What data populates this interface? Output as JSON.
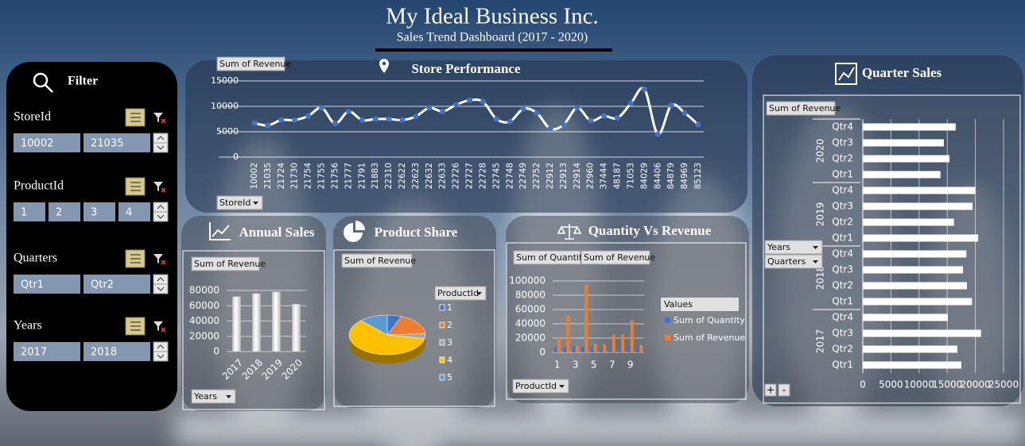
{
  "header": {
    "title": "My Ideal Business Inc.",
    "subtitle": "Sales Trend Dashboard (2017 - 2020)"
  },
  "filter": {
    "title": "Filter",
    "slicers": [
      {
        "name": "StoreId",
        "items": [
          "10002",
          "21035"
        ]
      },
      {
        "name": "ProductId",
        "items": [
          "1",
          "2",
          "3",
          "4"
        ]
      },
      {
        "name": "Quarters",
        "items": [
          "Qtr1",
          "Qtr2"
        ]
      },
      {
        "name": "Years",
        "items": [
          "2017",
          "2018"
        ]
      }
    ]
  },
  "chart_data": [
    {
      "type": "line",
      "title": "Store Performance",
      "value_field": "Sum of Revenue",
      "axis_field": "StoreId",
      "categories": [
        "10002",
        "21035",
        "21724",
        "21730",
        "21754",
        "21755",
        "21756",
        "21777",
        "21791",
        "21883",
        "22310",
        "22622",
        "22623",
        "22632",
        "22633",
        "22726",
        "22727",
        "22728",
        "22745",
        "22748",
        "22749",
        "22752",
        "22912",
        "22913",
        "22914",
        "22960",
        "37444",
        "48187",
        "71053",
        "84029",
        "84406",
        "84879",
        "84969",
        "85123"
      ],
      "values": [
        6700,
        6250,
        7300,
        7300,
        8100,
        9700,
        6600,
        9000,
        7300,
        7500,
        7500,
        7300,
        8000,
        9700,
        9000,
        10300,
        11200,
        10900,
        7500,
        7000,
        9500,
        8700,
        5600,
        6400,
        9700,
        7200,
        8100,
        7700,
        10600,
        13400,
        4500,
        10200,
        8700,
        6400
      ],
      "color": "#ffffff",
      "marker_color": "#4472c4",
      "ylim": [
        0,
        15000
      ],
      "yticks": [
        0,
        5000,
        10000,
        15000
      ],
      "grid": true
    },
    {
      "type": "column",
      "title": "Annual Sales",
      "value_field": "Sum of Revenue",
      "axis_field": "Years",
      "categories": [
        "2017",
        "2018",
        "2019",
        "2020"
      ],
      "values": [
        72000,
        76000,
        78000,
        62000
      ],
      "color": "#ffffff",
      "ylim": [
        0,
        80000
      ],
      "yticks": [
        0,
        20000,
        40000,
        60000,
        80000
      ],
      "grid": true
    },
    {
      "type": "pie",
      "title": "Product Share",
      "value_field": "Sum of Revenue",
      "legend_title": "ProductId",
      "categories": [
        "1",
        "2",
        "3",
        "4",
        "5"
      ],
      "values": [
        6,
        18,
        4,
        60,
        12
      ],
      "colors": [
        "#4472c4",
        "#ed7d31",
        "#a5a5a5",
        "#ffc000",
        "#5b9bd5"
      ]
    },
    {
      "type": "column",
      "title": "Quantity Vs Revenue",
      "axis_field": "ProductId",
      "legend_title": "Values",
      "categories": [
        "1",
        null,
        "3",
        null,
        "5",
        null,
        "7",
        null,
        "9",
        null
      ],
      "series": [
        {
          "name": "Sum of Quantity",
          "color": "#4472c4",
          "values": [
            8000,
            7000,
            9000,
            8000,
            7000,
            6000,
            8000,
            7000,
            9000,
            8000
          ]
        },
        {
          "name": "Sum of Revenue",
          "color": "#ed7d31",
          "values": [
            20000,
            52000,
            9000,
            95000,
            12000,
            11000,
            25000,
            25000,
            45000,
            10000
          ]
        }
      ],
      "ylim": [
        0,
        100000
      ],
      "yticks": [
        0,
        20000,
        40000,
        60000,
        80000,
        100000
      ],
      "grid": true
    },
    {
      "type": "bar",
      "title": "Quarter Sales",
      "value_field": "Sum of Revenue",
      "row_fields": [
        "Years",
        "Quarters"
      ],
      "groups": [
        {
          "label": "2020",
          "categories": [
            "Qtr4",
            "Qtr3",
            "Qtr2",
            "Qtr1"
          ],
          "values": [
            16500,
            14400,
            15400,
            13800
          ]
        },
        {
          "label": "2019",
          "categories": [
            "Qtr4",
            "Qtr3",
            "Qtr2",
            "Qtr1"
          ],
          "values": [
            20000,
            19500,
            16200,
            20500
          ]
        },
        {
          "label": "2018",
          "categories": [
            "Qtr4",
            "Qtr3",
            "Qtr2",
            "Qtr1"
          ],
          "values": [
            18400,
            17800,
            18500,
            19400
          ]
        },
        {
          "label": "2017",
          "categories": [
            "Qtr4",
            "Qtr3",
            "Qtr2",
            "Qtr1"
          ],
          "values": [
            15100,
            21000,
            16800,
            17500
          ]
        }
      ],
      "expand_buttons": [
        "+",
        "-"
      ],
      "color": "#ffffff",
      "xlim": [
        0,
        25000
      ],
      "xticks": [
        0,
        5000,
        10000,
        15000,
        20000,
        25000
      ],
      "grid": true
    }
  ]
}
